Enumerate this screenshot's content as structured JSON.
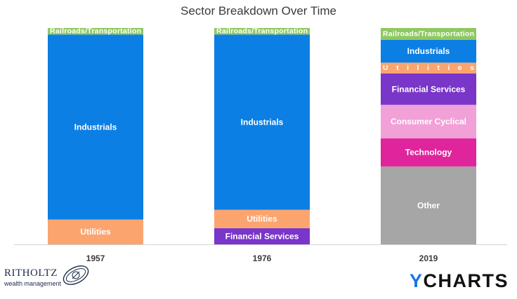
{
  "chart_data": {
    "type": "bar",
    "stacked": true,
    "percent": true,
    "title": "Sector Breakdown Over Time",
    "categories": [
      "1957",
      "1976",
      "2019"
    ],
    "ylim": [
      0,
      100
    ],
    "grid": false,
    "legend": "none",
    "stacks": [
      {
        "category": "1957",
        "segments": [
          {
            "name": "Utilities",
            "value": 11.5,
            "color": "#fca46e"
          },
          {
            "name": "Industrials",
            "value": 85.5,
            "color": "#0c7fe4"
          },
          {
            "name": "Railroads/Transportation",
            "value": 3.0,
            "color": "#8fc860"
          }
        ]
      },
      {
        "category": "1976",
        "segments": [
          {
            "name": "Financial Services",
            "value": 7.5,
            "color": "#7a35c9"
          },
          {
            "name": "Utilities",
            "value": 8.5,
            "color": "#fca46e"
          },
          {
            "name": "Industrials",
            "value": 81.0,
            "color": "#0c7fe4"
          },
          {
            "name": "Railroads/Transportation",
            "value": 3.0,
            "color": "#8fc860"
          }
        ]
      },
      {
        "category": "2019",
        "segments": [
          {
            "name": "Other",
            "value": 36.0,
            "color": "#a6a6a6"
          },
          {
            "name": "Technology",
            "value": 13.0,
            "color": "#e0249b"
          },
          {
            "name": "Consumer Cyclical",
            "value": 15.5,
            "color": "#f2a0d8"
          },
          {
            "name": "Financial Services",
            "value": 14.5,
            "color": "#7a35c9"
          },
          {
            "name": "Utilities",
            "value": 5.0,
            "color": "#fca46e"
          },
          {
            "name": "Industrials",
            "value": 10.5,
            "color": "#0c7fe4"
          },
          {
            "name": "Railroads/Transportation",
            "value": 5.5,
            "color": "#8fc860"
          }
        ]
      }
    ]
  },
  "logos": {
    "left_name": "RITHOLTZ",
    "left_sub": "wealth management",
    "right_y": "Y",
    "right_rest": "CHARTS"
  },
  "colors": {
    "axis": "#d4d4d4",
    "label_text": "#ffffff",
    "category_text": "#3b3b3b",
    "ritholtz_navy": "#1c2b4a",
    "ycharts_blue": "#1a73e8"
  }
}
